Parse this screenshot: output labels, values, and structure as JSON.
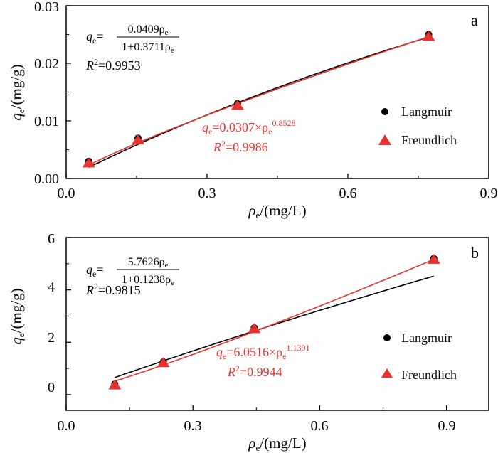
{
  "chart_data": [
    {
      "type": "scatter",
      "panel_label": "a",
      "xlabel": {
        "main": "ρ",
        "sub": "e",
        "rest": "/(mg/L)"
      },
      "ylabel": {
        "main": "q",
        "sub": "e",
        "rest": "/(mg/g)"
      },
      "xlim": [
        0.0,
        0.9
      ],
      "ylim": [
        0.0,
        0.03
      ],
      "xticks": [
        "0.0",
        "0.3",
        "0.6",
        "0.9"
      ],
      "yticks": [
        "0.00",
        "0.01",
        "0.02",
        "0.03"
      ],
      "series": [
        {
          "name": "Langmuir",
          "marker": "circle",
          "color": "#000000",
          "x": [
            0.048,
            0.153,
            0.365,
            0.772
          ],
          "y": [
            0.003,
            0.007,
            0.013,
            0.025
          ]
        },
        {
          "name": "Freundlich",
          "marker": "triangle",
          "color": "#e8322e",
          "x": [
            0.048,
            0.153,
            0.365,
            0.772
          ],
          "y": [
            0.0027,
            0.0067,
            0.0127,
            0.0247
          ]
        }
      ],
      "fits": [
        {
          "model": "langmuir",
          "color": "#000000",
          "a": 0.0409,
          "b": 0.3711,
          "x_range": [
            0.048,
            0.772
          ]
        },
        {
          "model": "freundlich",
          "color": "#e8322e",
          "k": 0.0307,
          "n": 0.8528,
          "x_range": [
            0.048,
            0.772
          ]
        }
      ],
      "equations": {
        "langmuir": {
          "lhs": "q",
          "lhs_sub": "e",
          "eq": "=",
          "numerator": "0.0409ρ",
          "numerator_sub": "e",
          "denominator": "1+0.3711ρ",
          "denominator_sub": "e",
          "r2_label": "R",
          "r2_sup": "2",
          "r2_value": "=0.9953"
        },
        "freundlich": {
          "lhs": "q",
          "lhs_sub": "e",
          "body": "=0.0307×ρ",
          "body_sub": "e",
          "body_sup": "0.8528",
          "r2_label": "R",
          "r2_sup": "2",
          "r2_value": "=0.9986"
        }
      },
      "legend": [
        "Langmuir",
        "Freundlich"
      ]
    },
    {
      "type": "scatter",
      "panel_label": "b",
      "xlabel": {
        "main": "ρ",
        "sub": "e",
        "rest": "/(mg/L)"
      },
      "ylabel": {
        "main": "q",
        "sub": "e",
        "rest": "/(mg/g)"
      },
      "xlim": [
        0.0,
        1.0
      ],
      "ylim": [
        -0.6,
        6.0
      ],
      "xticks": [
        "0.0",
        "0.3",
        "0.6",
        "0.9"
      ],
      "xtick_values": [
        0.0,
        0.3,
        0.6,
        0.9
      ],
      "yticks": [
        "0",
        "2",
        "4",
        "6"
      ],
      "ytick_values": [
        0,
        2,
        4,
        6
      ],
      "series": [
        {
          "name": "Langmuir",
          "marker": "circle",
          "color": "#000000",
          "x": [
            0.115,
            0.23,
            0.445,
            0.87
          ],
          "y": [
            0.4,
            1.25,
            2.55,
            5.2
          ]
        },
        {
          "name": "Freundlich",
          "marker": "triangle",
          "color": "#e8322e",
          "x": [
            0.115,
            0.23,
            0.445,
            0.87
          ],
          "y": [
            0.37,
            1.22,
            2.52,
            5.17
          ]
        }
      ],
      "fits": [
        {
          "model": "langmuir",
          "color": "#000000",
          "a": 5.7626,
          "b": 0.1238,
          "x_range": [
            0.115,
            0.87
          ]
        },
        {
          "model": "freundlich",
          "color": "#e8322e",
          "k": 6.0516,
          "n": 1.1391,
          "x_range": [
            0.115,
            0.87
          ]
        }
      ],
      "equations": {
        "langmuir": {
          "lhs": "q",
          "lhs_sub": "e",
          "eq": "=",
          "numerator": "5.7626ρ",
          "numerator_sub": "e",
          "denominator": "1+0.1238ρ",
          "denominator_sub": "e",
          "r2_label": "R",
          "r2_sup": "2",
          "r2_value": "=0.9815"
        },
        "freundlich": {
          "lhs": "q",
          "lhs_sub": "e",
          "body": "=6.0516×ρ",
          "body_sub": "e",
          "body_sup": "1.1391",
          "r2_label": "R",
          "r2_sup": "2",
          "r2_value": "=0.9944"
        }
      },
      "legend": [
        "Langmuir",
        "Freundlich"
      ]
    }
  ]
}
